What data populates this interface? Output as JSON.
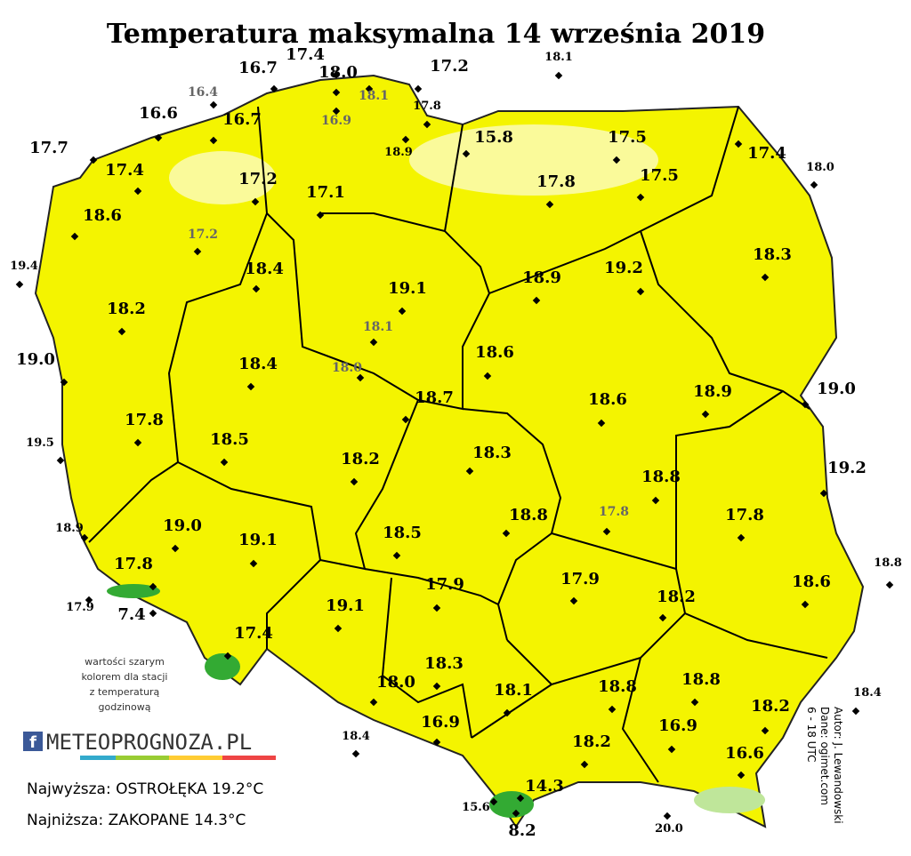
{
  "header": {
    "title": "Temperatura maksymalna 14 września 2019"
  },
  "stations": [
    "16.7",
    "17.4",
    "18.0",
    "17.2",
    "18.1",
    "16.4",
    "18.1",
    "16.9",
    "17.8",
    "16.6",
    "16.7",
    "18.9",
    "15.8",
    "17.5",
    "17.4",
    "18.0",
    "17.7",
    "17.4",
    "17.8",
    "17.5",
    "17.2",
    "17.1",
    "18.6",
    "17.2",
    "19.4",
    "18.4",
    "18.3",
    "18.9",
    "19.2",
    "19.1",
    "18.2",
    "18.1",
    "19.0",
    "18.6",
    "18.4",
    "18.0",
    "18.7",
    "18.6",
    "18.9",
    "19.0",
    "17.8",
    "19.5",
    "18.5",
    "18.3",
    "18.2",
    "19.2",
    "18.8",
    "17.8",
    "18.8",
    "17.8",
    "19.0",
    "18.5",
    "19.1",
    "18.9",
    "18.8",
    "17.8",
    "17.9",
    "17.9",
    "18.6",
    "18.2",
    "17.9",
    "7.4",
    "19.1",
    "17.4",
    "18.3",
    "18.8",
    "18.0",
    "18.1",
    "18.8",
    "18.2",
    "18.4",
    "16.9",
    "16.9",
    "18.4",
    "18.2",
    "16.6",
    "14.3",
    "15.6",
    "8.2",
    "20.0"
  ],
  "note": [
    "wartości szarym",
    "kolorem dla stacji",
    "z temperaturą",
    "godzinową"
  ],
  "logo": {
    "icon": "f",
    "text": "METEOPROGNOZA.PL"
  },
  "summary": {
    "highest": "Najwyższa: OSTROŁĘKA 19.2°C",
    "lowest": "Najniższa: ZAKOPANE 14.3°C"
  },
  "credits": [
    "Autor: J. Lewandowski",
    "Dane: ogimet.com",
    "6 - 18 UTC"
  ]
}
